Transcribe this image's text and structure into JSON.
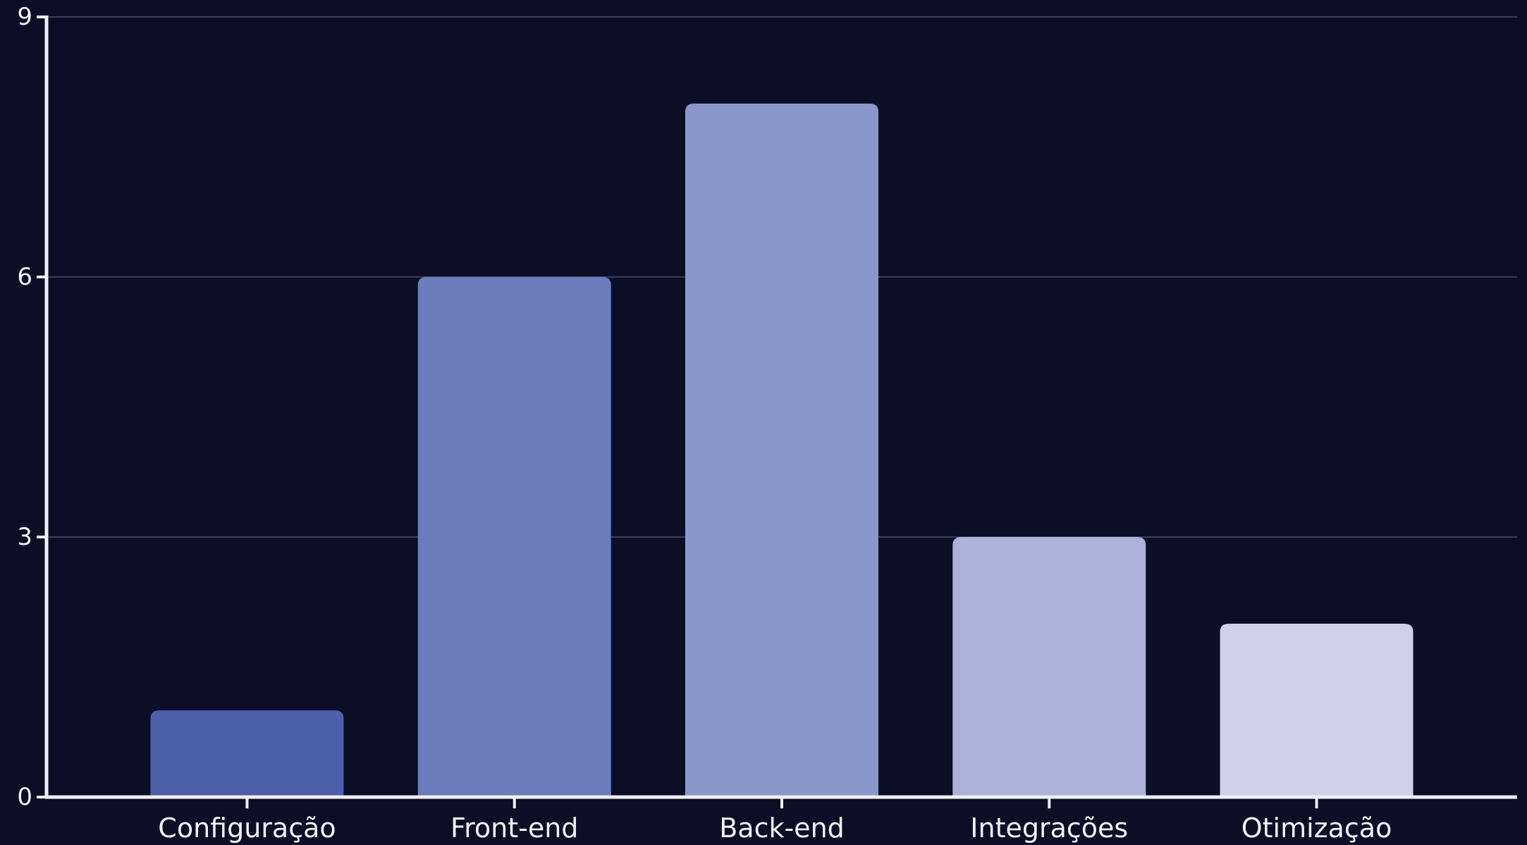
{
  "colors": {
    "background": "#0a0f26",
    "axis": "#eef0f6",
    "grid": "#3a3f5a",
    "text": "#f2f3f8",
    "bars": [
      "#4e5faa",
      "#6c7bbb",
      "#8b97cb",
      "#abb3da",
      "#cdd2e8"
    ]
  },
  "chart_data": {
    "type": "bar",
    "title": "",
    "xlabel": "",
    "ylabel": "",
    "categories": [
      "Configuração",
      "Front-end",
      "Back-end",
      "Integrações",
      "Otimização"
    ],
    "values": [
      1,
      6,
      8,
      3,
      2
    ],
    "ylim": [
      0,
      9
    ],
    "yticks": [
      0,
      3,
      6,
      9
    ],
    "grid": true,
    "legend": "none"
  }
}
